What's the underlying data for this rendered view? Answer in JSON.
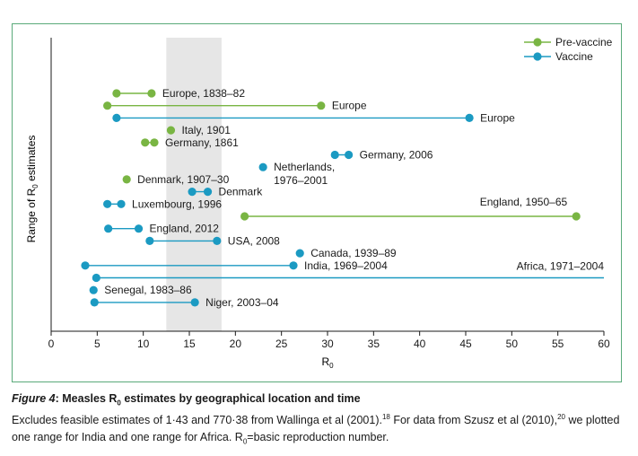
{
  "chart_data": {
    "type": "range-dot",
    "xlabel": "R",
    "xlabel_sub": "0",
    "ylabel": "Range of R",
    "ylabel_sub": "0",
    "ylabel_suffix": " estimates",
    "xlim": [
      0,
      60
    ],
    "xticks": [
      0,
      5,
      10,
      15,
      20,
      25,
      30,
      35,
      40,
      45,
      50,
      55,
      60
    ],
    "shaded_band": [
      12.5,
      18.5
    ],
    "legend_position": "top-right",
    "series": [
      {
        "key": "pre",
        "name": "Pre-vaccine",
        "color": "#79b543"
      },
      {
        "key": "vac",
        "name": "Vaccine",
        "color": "#1b9ac2"
      }
    ],
    "ranges": [
      {
        "label": "Europe, 1838–82",
        "series": "pre",
        "lo": 7.1,
        "hi": 10.9,
        "row": 0
      },
      {
        "label": "Europe",
        "series": "pre",
        "lo": 6.1,
        "hi": 29.3,
        "row": 1
      },
      {
        "label": "Europe",
        "series": "vac",
        "lo": 7.1,
        "hi": 45.4,
        "row": 2
      },
      {
        "label": "Italy, 1901",
        "series": "pre",
        "lo": 13.0,
        "hi": 13.0,
        "row": 3
      },
      {
        "label": "Germany, 1861",
        "series": "pre",
        "lo": 10.2,
        "hi": 11.2,
        "row": 4
      },
      {
        "label": "Germany, 2006",
        "series": "vac",
        "lo": 30.8,
        "hi": 32.3,
        "row": 5
      },
      {
        "label": "Netherlands,\n1976–2001",
        "series": "vac",
        "lo": 23.0,
        "hi": 23.0,
        "row": 6
      },
      {
        "label": "Denmark, 1907–30",
        "series": "pre",
        "lo": 8.2,
        "hi": 8.2,
        "row": 7
      },
      {
        "label": "Denmark",
        "series": "vac",
        "lo": 15.3,
        "hi": 17.0,
        "row": 8
      },
      {
        "label": "Luxembourg, 1996",
        "series": "vac",
        "lo": 6.1,
        "hi": 7.6,
        "row": 9
      },
      {
        "label": "England, 1950–65",
        "series": "pre",
        "lo": 21.0,
        "hi": 57.0,
        "row": 10
      },
      {
        "label": "England, 2012",
        "series": "vac",
        "lo": 6.2,
        "hi": 9.5,
        "row": 11
      },
      {
        "label": "USA, 2008",
        "series": "vac",
        "lo": 10.7,
        "hi": 18.0,
        "row": 12
      },
      {
        "label": "Canada, 1939–89",
        "series": "vac",
        "lo": 27.0,
        "hi": 27.0,
        "row": 13
      },
      {
        "label": "India, 1969–2004",
        "series": "vac",
        "lo": 3.7,
        "hi": 26.3,
        "row": 14
      },
      {
        "label": "Africa, 1971–2004",
        "series": "vac",
        "lo": 4.9,
        "hi": 60,
        "row": 15
      },
      {
        "label": "Senegal, 1983–86",
        "series": "vac",
        "lo": 4.6,
        "hi": 4.6,
        "row": 16
      },
      {
        "label": "Niger, 2003–04",
        "series": "vac",
        "lo": 4.7,
        "hi": 15.6,
        "row": 17
      }
    ]
  },
  "caption": {
    "figure_label": "Figure 4",
    "title_a": ": Measles R",
    "title_sub": "0",
    "title_b": " estimates by geographical location and time",
    "body_1": "Excludes feasible estimates of 1·43 and 770·38 from Wallinga et al (2001).",
    "ref_1": "18",
    "body_2": " For data from Szusz et al (2010),",
    "ref_2": "20",
    "body_3": " we plotted one range for India and one range for Africa. R",
    "body_sub": "0",
    "body_4": "=basic reproduction number."
  }
}
